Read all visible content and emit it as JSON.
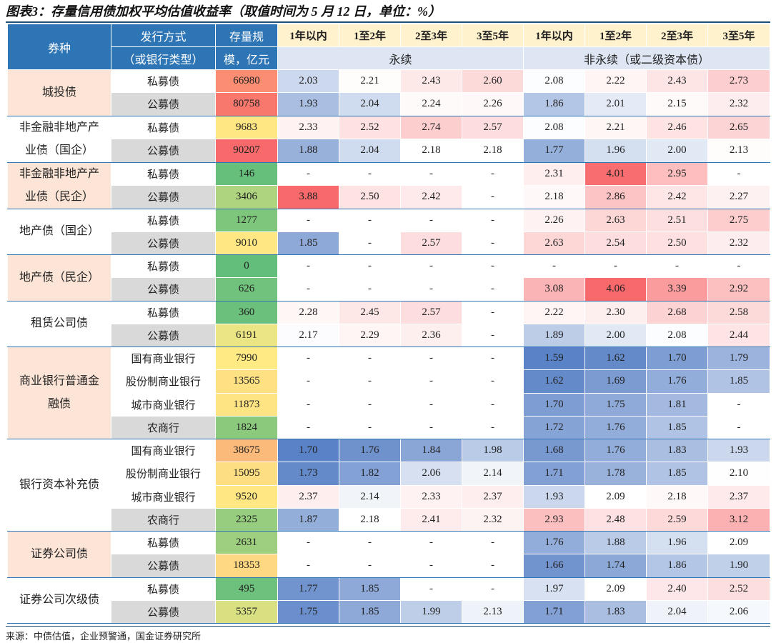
{
  "title": "图表3：存量信用债加权平均估值收益率（取值时间为 5 月 12 日，单位：%）",
  "header": {
    "type": "券种",
    "method": [
      "发行方式",
      "（或银行类型）"
    ],
    "stock": [
      "存量规",
      "模，亿元"
    ],
    "periods": [
      "1年以内",
      "1至2年",
      "2至3年",
      "3至5年",
      "1年以内",
      "1至2年",
      "2至3年",
      "3至5年"
    ],
    "groups": [
      "永续",
      "非永续（或二级资本债）"
    ]
  },
  "groups": [
    {
      "label": [
        "城投债"
      ],
      "rows": [
        {
          "method": "私募债",
          "stock": 66980,
          "values": [
            "2.03",
            "2.21",
            "2.43",
            "2.60",
            "2.08",
            "2.22",
            "2.43",
            "2.73"
          ]
        },
        {
          "method": "公募债",
          "stock": 80758,
          "values": [
            "1.93",
            "2.04",
            "2.24",
            "2.26",
            "1.86",
            "2.01",
            "2.15",
            "2.32"
          ]
        }
      ]
    },
    {
      "label": [
        "非金融非地产产",
        "业债（国企）"
      ],
      "rows": [
        {
          "method": "私募债",
          "stock": 9683,
          "values": [
            "2.33",
            "2.52",
            "2.74",
            "2.57",
            "2.08",
            "2.21",
            "2.46",
            "2.65"
          ]
        },
        {
          "method": "公募债",
          "stock": 90207,
          "values": [
            "1.88",
            "2.04",
            "2.18",
            "2.18",
            "1.77",
            "1.96",
            "2.00",
            "2.13"
          ]
        }
      ]
    },
    {
      "label": [
        "非金融非地产产",
        "业债（民企）"
      ],
      "rows": [
        {
          "method": "私募债",
          "stock": 146,
          "values": [
            "-",
            "-",
            "-",
            "-",
            "2.31",
            "4.01",
            "2.95",
            "-"
          ]
        },
        {
          "method": "公募债",
          "stock": 3406,
          "values": [
            "3.88",
            "2.50",
            "2.42",
            "-",
            "2.18",
            "2.86",
            "2.42",
            "2.27"
          ]
        }
      ]
    },
    {
      "label": [
        "地产债（国企）"
      ],
      "rows": [
        {
          "method": "私募债",
          "stock": 1277,
          "values": [
            "-",
            "-",
            "-",
            "-",
            "2.26",
            "2.63",
            "2.51",
            "2.75"
          ]
        },
        {
          "method": "公募债",
          "stock": 9010,
          "values": [
            "1.85",
            "-",
            "2.57",
            "-",
            "2.63",
            "2.54",
            "2.50",
            "2.32"
          ]
        }
      ]
    },
    {
      "label": [
        "地产债（民企）"
      ],
      "rows": [
        {
          "method": "私募债",
          "stock": 0,
          "values": [
            "-",
            "-",
            "-",
            "-",
            "-",
            "-",
            "-",
            "-"
          ]
        },
        {
          "method": "公募债",
          "stock": 626,
          "values": [
            "-",
            "-",
            "-",
            "-",
            "3.08",
            "4.06",
            "3.39",
            "2.92"
          ]
        }
      ]
    },
    {
      "label": [
        "租赁公司债"
      ],
      "rows": [
        {
          "method": "私募债",
          "stock": 360,
          "values": [
            "2.28",
            "2.45",
            "2.57",
            "-",
            "2.22",
            "2.30",
            "2.68",
            "2.58"
          ]
        },
        {
          "method": "公募债",
          "stock": 6191,
          "values": [
            "2.17",
            "2.29",
            "2.36",
            "-",
            "1.89",
            "2.00",
            "2.08",
            "2.44"
          ]
        }
      ]
    },
    {
      "label": [
        "商业银行普通金",
        "融债"
      ],
      "rows": [
        {
          "method": "国有商业银行",
          "stock": 7990,
          "values": [
            "-",
            "-",
            "-",
            "-",
            "1.59",
            "1.62",
            "1.70",
            "1.79"
          ]
        },
        {
          "method": "股份制商业银行",
          "stock": 13565,
          "values": [
            "-",
            "-",
            "-",
            "-",
            "1.62",
            "1.69",
            "1.76",
            "1.85"
          ]
        },
        {
          "method": "城市商业银行",
          "stock": 11873,
          "values": [
            "-",
            "-",
            "-",
            "-",
            "1.70",
            "1.75",
            "1.81",
            "-"
          ]
        },
        {
          "method": "农商行",
          "stock": 1824,
          "values": [
            "-",
            "-",
            "-",
            "-",
            "1.72",
            "1.76",
            "1.85",
            "-"
          ]
        }
      ]
    },
    {
      "label": [
        "银行资本补充债"
      ],
      "rows": [
        {
          "method": "国有商业银行",
          "stock": 38675,
          "values": [
            "1.70",
            "1.76",
            "1.84",
            "1.98",
            "1.68",
            "1.76",
            "1.83",
            "1.93"
          ]
        },
        {
          "method": "股份制商业银行",
          "stock": 15095,
          "values": [
            "1.73",
            "1.82",
            "2.06",
            "2.14",
            "1.71",
            "1.78",
            "1.85",
            "2.10"
          ]
        },
        {
          "method": "城市商业银行",
          "stock": 9520,
          "values": [
            "2.37",
            "2.14",
            "2.33",
            "2.37",
            "1.93",
            "2.09",
            "2.18",
            "2.37"
          ]
        },
        {
          "method": "农商行",
          "stock": 2325,
          "values": [
            "1.87",
            "2.18",
            "2.41",
            "2.32",
            "2.93",
            "2.48",
            "2.59",
            "3.12"
          ]
        }
      ]
    },
    {
      "label": [
        "证券公司债"
      ],
      "rows": [
        {
          "method": "私募债",
          "stock": 2631,
          "values": [
            "-",
            "-",
            "-",
            "-",
            "1.76",
            "1.88",
            "1.96",
            "2.09"
          ]
        },
        {
          "method": "公募债",
          "stock": 18353,
          "values": [
            "-",
            "-",
            "-",
            "-",
            "1.66",
            "1.74",
            "1.86",
            "1.90"
          ]
        }
      ]
    },
    {
      "label": [
        "证券公司次级债"
      ],
      "rows": [
        {
          "method": "私募债",
          "stock": 495,
          "values": [
            "1.77",
            "1.85",
            "-",
            "-",
            "1.97",
            "2.09",
            "2.40",
            "2.52"
          ]
        },
        {
          "method": "公募债",
          "stock": 5357,
          "values": [
            "1.75",
            "1.85",
            "1.99",
            "2.13",
            "1.71",
            "1.83",
            "2.04",
            "2.06"
          ]
        }
      ]
    }
  ],
  "source": "来源：中债估值，企业预警通，国金证券研究所"
}
